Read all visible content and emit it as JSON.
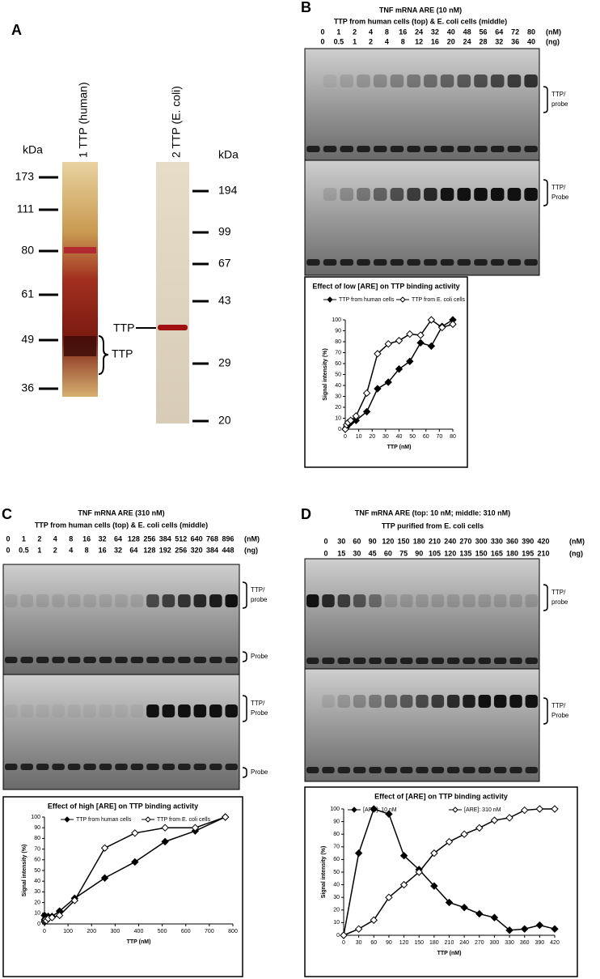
{
  "panels": {
    "A": {
      "label": "A",
      "lanes": [
        "1 TTP (human)",
        "2 TTP (E. coli)"
      ],
      "kda_label": "kDa",
      "left_markers": [
        173,
        111,
        80,
        61,
        49,
        36
      ],
      "right_markers": [
        194,
        99,
        67,
        43,
        29,
        20
      ],
      "band_label": "TTP",
      "bracket_label": "TTP"
    },
    "B": {
      "label": "B",
      "title": "TNF mRNA ARE (10 nM)",
      "subtitle": "TTP from human cells (top) & E. coli cells (middle)",
      "lanes_nM": [
        0,
        1,
        2,
        4,
        8,
        16,
        24,
        32,
        40,
        48,
        56,
        64,
        72,
        80
      ],
      "lanes_ng": [
        0,
        0.5,
        1,
        2,
        4,
        8,
        12,
        16,
        20,
        24,
        28,
        32,
        36,
        40
      ],
      "unit_nM": "(nM)",
      "unit_ng": "(ng)",
      "gel_labels": [
        [
          "TTP/",
          "probe"
        ],
        [
          "TTP/",
          "Probe"
        ]
      ]
    },
    "C": {
      "label": "C",
      "title": "TNF mRNA ARE (310 nM)",
      "subtitle": "TTP from human cells (top) & E. coli cells (middle)",
      "lanes_nM": [
        0,
        1,
        2,
        4,
        8,
        16,
        32,
        64,
        128,
        256,
        384,
        512,
        640,
        768,
        896
      ],
      "lanes_ng": [
        0,
        0.5,
        1,
        2,
        4,
        8,
        16,
        32,
        64,
        128,
        192,
        256,
        320,
        384,
        448
      ],
      "unit_nM": "(nM)",
      "unit_ng": "(ng)",
      "gel_labels": [
        [
          "TTP/",
          "probe"
        ],
        [
          "Probe"
        ],
        [
          "TTP/",
          "Probe"
        ],
        [
          "Probe"
        ]
      ]
    },
    "D": {
      "label": "D",
      "title": "TNF mRNA ARE (top: 10 nM; middle: 310 nM)",
      "subtitle": "TTP purified from E. coli cells",
      "lanes_nM": [
        0,
        30,
        60,
        90,
        120,
        150,
        180,
        210,
        240,
        270,
        300,
        330,
        360,
        390,
        420
      ],
      "lanes_ng": [
        0,
        15,
        30,
        45,
        60,
        75,
        90,
        105,
        120,
        135,
        150,
        165,
        180,
        195,
        210
      ],
      "unit_nM": "(nM)",
      "unit_ng": "(ng)",
      "gel_labels": [
        [
          "TTP/",
          "probe"
        ],
        [
          "TTP/",
          "Probe"
        ]
      ]
    }
  },
  "chart_data": [
    {
      "type": "line",
      "title": "Effect of low [ARE] on TTP binding activity",
      "x_label": "TTP (nM)",
      "y_label": "Signal intensity (%)",
      "x": [
        0,
        1,
        2,
        4,
        8,
        16,
        24,
        32,
        40,
        48,
        56,
        64,
        72,
        80
      ],
      "series": [
        {
          "name": "TTP from human cells",
          "color": "#000000",
          "marker": "filled",
          "values": [
            0,
            2,
            4,
            6,
            8,
            16,
            37,
            43,
            55,
            62,
            79,
            76,
            94,
            100
          ]
        },
        {
          "name": "TTP from E. coli cells",
          "color": "#000000",
          "marker": "open",
          "values": [
            0,
            4,
            6,
            8,
            12,
            33,
            69,
            78,
            81,
            87,
            86,
            100,
            93,
            96
          ]
        }
      ],
      "xlim": [
        0,
        80
      ],
      "xticks": [
        0,
        10,
        20,
        30,
        40,
        50,
        60,
        70,
        80
      ],
      "ylim": [
        0,
        100
      ],
      "yticks": [
        0,
        10,
        20,
        30,
        40,
        50,
        60,
        70,
        80,
        90,
        100
      ]
    },
    {
      "type": "line",
      "title": "Effect of high [ARE] on TTP binding activity",
      "x_label": "TTP (nM)",
      "y_label": "Signal intensity (%)",
      "x": [
        0,
        1,
        2,
        4,
        8,
        16,
        32,
        64,
        128,
        256,
        384,
        512,
        640,
        768
      ],
      "series": [
        {
          "name": "TTP from human cells",
          "color": "#000000",
          "marker": "filled",
          "values": [
            8,
            4,
            3,
            5,
            6,
            7,
            7,
            12,
            24,
            43,
            58,
            77,
            87,
            100
          ]
        },
        {
          "name": "TTP from E. coli cells",
          "color": "#000000",
          "marker": "open",
          "values": [
            2,
            2,
            3,
            4,
            3,
            5,
            6,
            8,
            22,
            71,
            85,
            90,
            90,
            100
          ]
        }
      ],
      "xlim": [
        0,
        800
      ],
      "xticks": [
        0,
        100,
        200,
        300,
        400,
        500,
        600,
        700,
        800
      ],
      "ylim": [
        0,
        100
      ],
      "yticks": [
        0,
        10,
        20,
        30,
        40,
        50,
        60,
        70,
        80,
        90,
        100
      ]
    },
    {
      "type": "line",
      "title": "Effect of [ARE] on TTP binding activity",
      "x_label": "TTP (nM)",
      "y_label": "Signal intensity (%)",
      "x": [
        0,
        30,
        60,
        90,
        120,
        150,
        180,
        210,
        240,
        270,
        300,
        330,
        360,
        390,
        420
      ],
      "series": [
        {
          "name": "[ARE]: 10 nM",
          "color": "#000000",
          "marker": "filled",
          "values": [
            0,
            65,
            100,
            96,
            63,
            52,
            39,
            26,
            22,
            17,
            14,
            4,
            5,
            8,
            5
          ]
        },
        {
          "name": "[ARE]: 310 nM",
          "color": "#000000",
          "marker": "open",
          "values": [
            0,
            5,
            12,
            30,
            40,
            50,
            65,
            74,
            80,
            85,
            91,
            93,
            99,
            100,
            100
          ]
        }
      ],
      "xlim": [
        0,
        420
      ],
      "xticks": [
        0,
        30,
        60,
        90,
        120,
        150,
        180,
        210,
        240,
        270,
        300,
        330,
        360,
        390,
        420
      ],
      "ylim": [
        0,
        100
      ],
      "yticks": [
        0,
        10,
        20,
        30,
        40,
        50,
        60,
        70,
        80,
        90,
        100
      ]
    }
  ]
}
